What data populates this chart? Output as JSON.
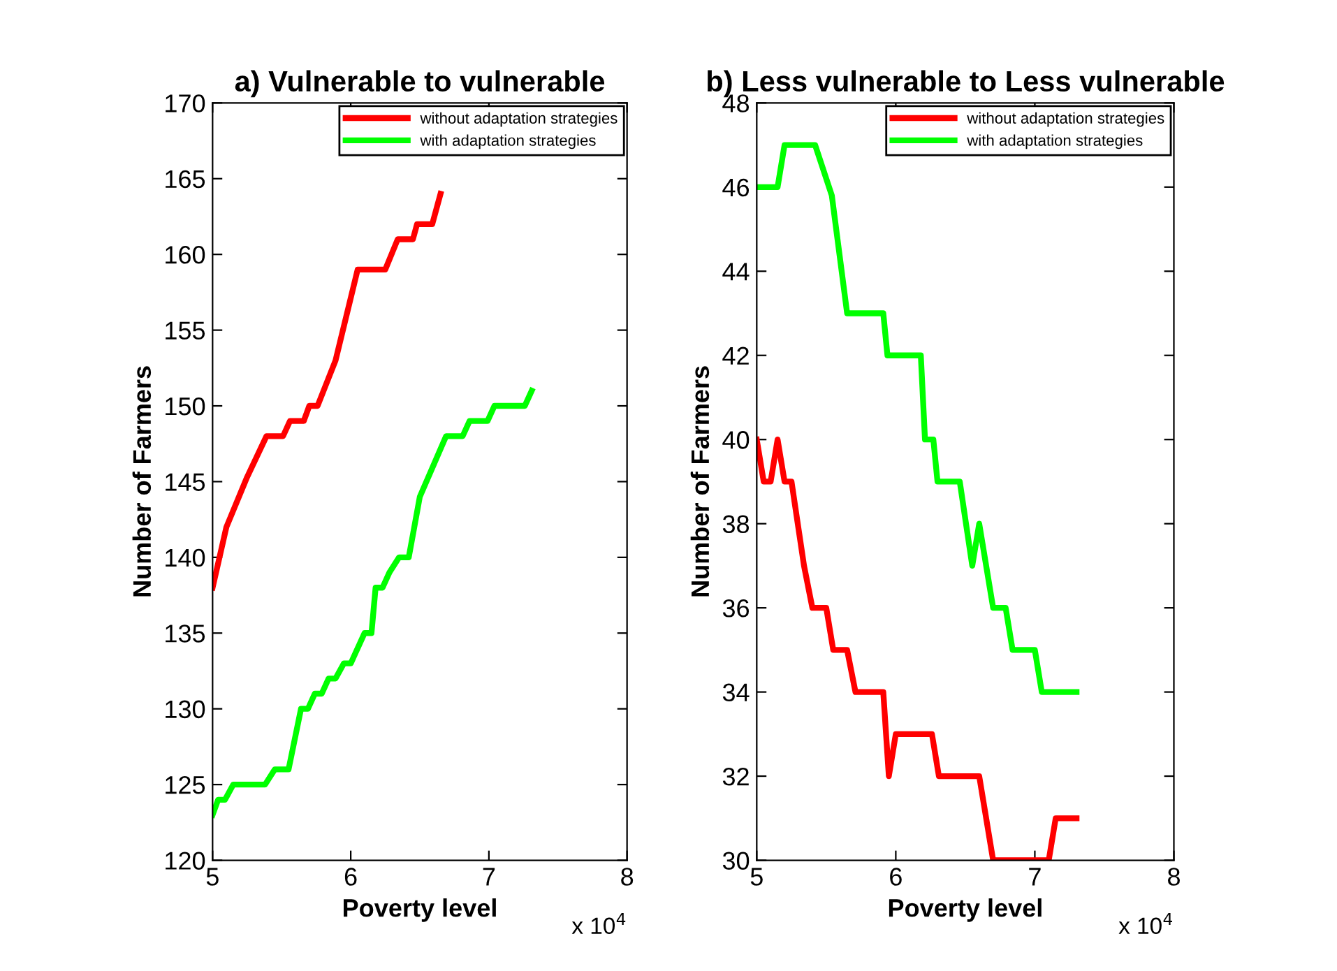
{
  "chart_data": [
    {
      "type": "line",
      "title": "a) Vulnerable to vulnerable",
      "xlabel": "Poverty level",
      "ylabel": "Number of Farmers",
      "annotations": [
        "x 10$^{4}$"
      ],
      "legend": "top right",
      "grid": false,
      "line_style": "solid",
      "marker": "none",
      "xlim": [
        5,
        8
      ],
      "xticks": [
        5,
        6,
        7,
        8
      ],
      "ylim": [
        120,
        170
      ],
      "yticks": [
        120,
        125,
        130,
        135,
        140,
        145,
        150,
        155,
        160,
        165,
        170
      ],
      "series": [
        {
          "name": "without adaptation strategies",
          "color": "#ff0000",
          "x": [
            5.0,
            5.1,
            5.25,
            5.39,
            5.51,
            5.56,
            5.66,
            5.7,
            5.76,
            5.89,
            6.05,
            6.25,
            6.34,
            6.45,
            6.48,
            6.59,
            6.65
          ],
          "values": [
            138,
            142,
            145.3,
            148,
            148,
            149,
            149,
            150,
            150,
            153,
            159,
            159,
            161,
            161,
            162,
            162,
            164
          ]
        },
        {
          "name": "with adaptation strategies",
          "color": "#00ff00",
          "x": [
            5.0,
            5.04,
            5.09,
            5.15,
            5.38,
            5.45,
            5.55,
            5.64,
            5.69,
            5.74,
            5.79,
            5.84,
            5.89,
            5.95,
            6.0,
            6.1,
            6.15,
            6.18,
            6.23,
            6.28,
            6.35,
            6.42,
            6.5,
            6.69,
            6.81,
            6.86,
            6.99,
            7.04,
            7.26,
            7.31
          ],
          "values": [
            123,
            124,
            124,
            125,
            125,
            126,
            126,
            130,
            130,
            131,
            131,
            132,
            132,
            133,
            133,
            135,
            135,
            138,
            138,
            139,
            140,
            140,
            144,
            148,
            148,
            149,
            149,
            150,
            150,
            151
          ]
        }
      ]
    },
    {
      "type": "line",
      "title": "b) Less vulnerable to Less vulnerable",
      "xlabel": "Poverty level",
      "ylabel": "Number of Farmers",
      "annotations": [
        "x 10$^{4}$"
      ],
      "legend": "top right",
      "grid": false,
      "line_style": "solid",
      "marker": "none",
      "xlim": [
        5,
        8
      ],
      "xticks": [
        5,
        6,
        7,
        8
      ],
      "ylim": [
        30,
        48
      ],
      "yticks": [
        30,
        32,
        34,
        36,
        38,
        40,
        42,
        44,
        46,
        48
      ],
      "series": [
        {
          "name": "without adaptation strategies",
          "color": "#ff0000",
          "x": [
            5.0,
            5.05,
            5.1,
            5.15,
            5.2,
            5.25,
            5.34,
            5.4,
            5.5,
            5.55,
            5.65,
            5.71,
            5.91,
            5.95,
            6.0,
            6.26,
            6.31,
            6.6,
            6.7,
            7.1,
            7.15,
            7.3
          ],
          "values": [
            40,
            39,
            39,
            40,
            39,
            39,
            37,
            36,
            36,
            35,
            35,
            34,
            34,
            32,
            33,
            33,
            32,
            32,
            30,
            30,
            31,
            31
          ]
        },
        {
          "name": "with adaptation strategies",
          "color": "#00ff00",
          "x": [
            5.0,
            5.15,
            5.2,
            5.42,
            5.54,
            5.65,
            5.91,
            5.94,
            6.18,
            6.21,
            6.27,
            6.3,
            6.46,
            6.55,
            6.6,
            6.7,
            6.79,
            6.84,
            7.0,
            7.05,
            7.3
          ],
          "values": [
            46,
            46,
            47,
            47,
            45.8,
            43,
            43,
            42,
            42,
            40,
            40,
            39,
            39,
            37,
            38,
            36,
            36,
            35,
            35,
            34,
            34
          ]
        }
      ]
    }
  ]
}
